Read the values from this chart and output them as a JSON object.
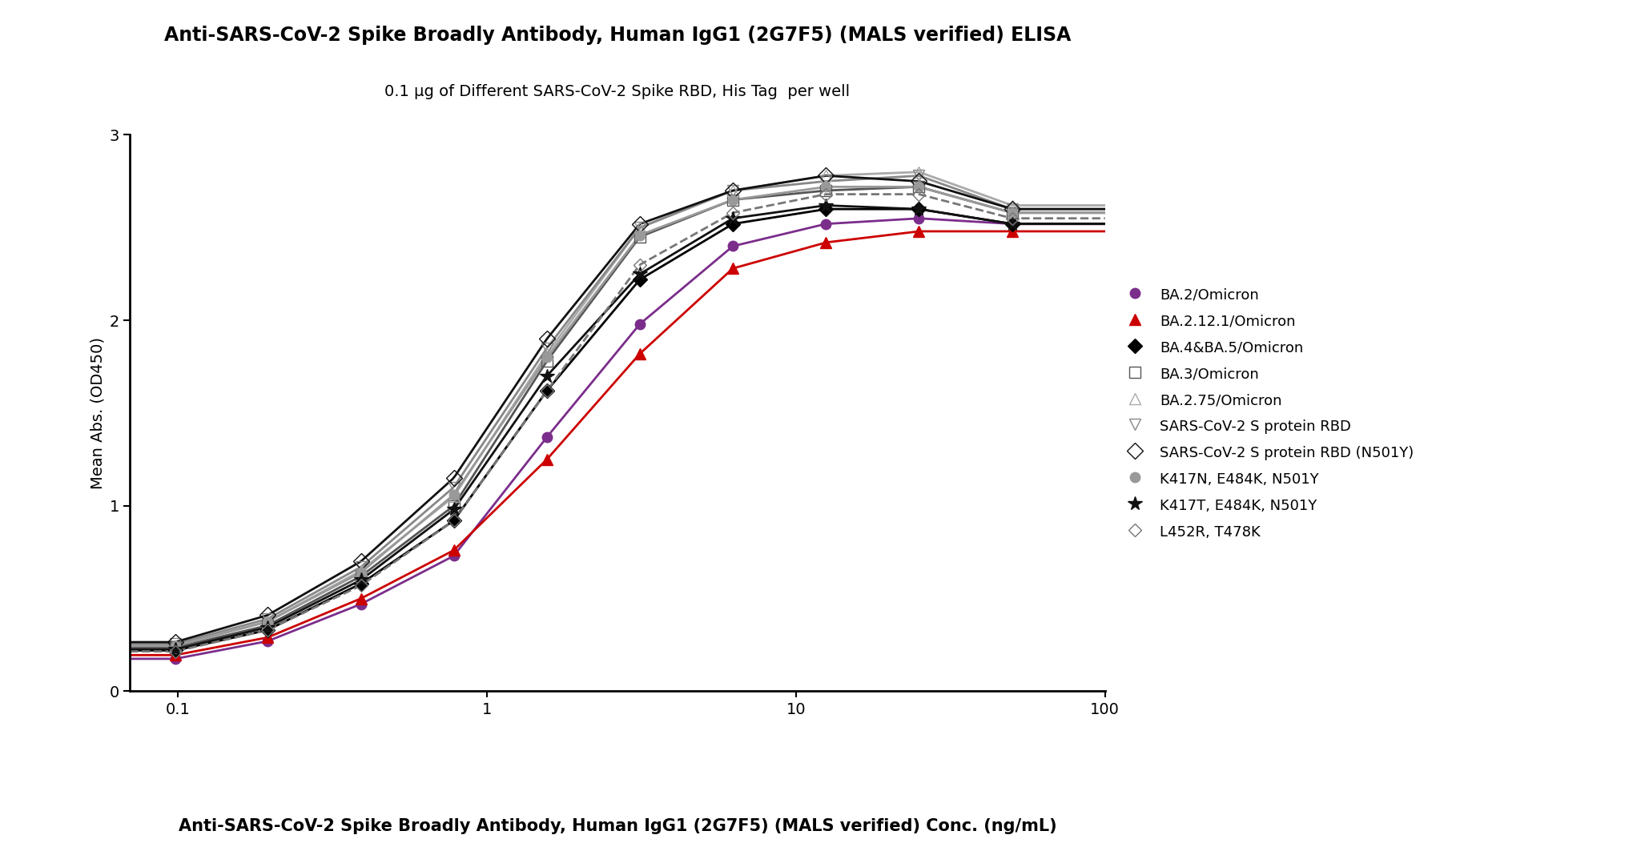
{
  "title": "Anti-SARS-CoV-2 Spike Broadly Antibody, Human IgG1 (2G7F5) (MALS verified) ELISA",
  "subtitle": "0.1 μg of Different SARS-CoV-2 Spike RBD, His Tag  per well",
  "xlabel": "Anti-SARS-CoV-2 Spike Broadly Antibody, Human IgG1 (2G7F5) (MALS verified) Conc. (ng/mL)",
  "ylabel": "Mean Abs. (OD450)",
  "background_color": "#ffffff",
  "series": [
    {
      "label": "BA.2/Omicron",
      "color": "#7b2d8b",
      "marker": "o",
      "markersize": 9,
      "linestyle": "-",
      "linewidth": 2.0,
      "fillstyle": "full",
      "x": [
        0.098,
        0.195,
        0.391,
        0.781,
        1.563,
        3.125,
        6.25,
        12.5,
        25,
        50
      ],
      "y": [
        0.175,
        0.27,
        0.47,
        0.73,
        1.37,
        1.98,
        2.4,
        2.52,
        2.55,
        2.52
      ]
    },
    {
      "label": "BA.2.12.1/Omicron",
      "color": "#cc0000",
      "marker": "^",
      "markersize": 10,
      "linestyle": "-",
      "linewidth": 2.0,
      "fillstyle": "full",
      "x": [
        0.098,
        0.195,
        0.391,
        0.781,
        1.563,
        3.125,
        6.25,
        12.5,
        25,
        50
      ],
      "y": [
        0.195,
        0.29,
        0.5,
        0.76,
        1.25,
        1.82,
        2.28,
        2.42,
        2.48,
        2.48
      ]
    },
    {
      "label": "BA.4&BA.5/Omicron",
      "color": "#000000",
      "marker": "D",
      "markersize": 9,
      "linestyle": "-",
      "linewidth": 2.0,
      "fillstyle": "full",
      "x": [
        0.098,
        0.195,
        0.391,
        0.781,
        1.563,
        3.125,
        6.25,
        12.5,
        25,
        50
      ],
      "y": [
        0.22,
        0.33,
        0.58,
        0.92,
        1.62,
        2.22,
        2.52,
        2.6,
        2.6,
        2.52
      ]
    },
    {
      "label": "BA.3/Omicron",
      "color": "#555555",
      "marker": "s",
      "markersize": 10,
      "linestyle": "-",
      "linewidth": 2.0,
      "fillstyle": "none",
      "x": [
        0.098,
        0.195,
        0.391,
        0.781,
        1.563,
        3.125,
        6.25,
        12.5,
        25,
        50
      ],
      "y": [
        0.235,
        0.355,
        0.62,
        1.0,
        1.78,
        2.45,
        2.65,
        2.7,
        2.72,
        2.58
      ]
    },
    {
      "label": "BA.2.75/Omicron",
      "color": "#aaaaaa",
      "marker": "^",
      "markersize": 10,
      "linestyle": "-",
      "linewidth": 2.0,
      "fillstyle": "none",
      "x": [
        0.098,
        0.195,
        0.391,
        0.781,
        1.563,
        3.125,
        6.25,
        12.5,
        25,
        50
      ],
      "y": [
        0.245,
        0.375,
        0.65,
        1.05,
        1.82,
        2.5,
        2.7,
        2.78,
        2.8,
        2.62
      ]
    },
    {
      "label": "SARS-CoV-2 S protein RBD",
      "color": "#888888",
      "marker": "v",
      "markersize": 10,
      "linestyle": "-",
      "linewidth": 2.0,
      "fillstyle": "none",
      "x": [
        0.098,
        0.195,
        0.391,
        0.781,
        1.563,
        3.125,
        6.25,
        12.5,
        25,
        50
      ],
      "y": [
        0.255,
        0.39,
        0.67,
        1.1,
        1.85,
        2.5,
        2.7,
        2.75,
        2.78,
        2.6
      ]
    },
    {
      "label": "SARS-CoV-2 S protein RBD (N501Y)",
      "color": "#111111",
      "marker": "D",
      "markersize": 10,
      "linestyle": "-",
      "linewidth": 2.0,
      "fillstyle": "none",
      "x": [
        0.098,
        0.195,
        0.391,
        0.781,
        1.563,
        3.125,
        6.25,
        12.5,
        25,
        50
      ],
      "y": [
        0.265,
        0.41,
        0.7,
        1.15,
        1.9,
        2.52,
        2.7,
        2.78,
        2.75,
        2.6
      ]
    },
    {
      "label": "K417N, E484K, N501Y",
      "color": "#999999",
      "marker": "o",
      "markersize": 9,
      "linestyle": "-",
      "linewidth": 2.0,
      "fillstyle": "full",
      "x": [
        0.098,
        0.195,
        0.391,
        0.781,
        1.563,
        3.125,
        6.25,
        12.5,
        25,
        50
      ],
      "y": [
        0.245,
        0.375,
        0.64,
        1.06,
        1.8,
        2.46,
        2.65,
        2.72,
        2.72,
        2.58
      ]
    },
    {
      "label": "K417T, E484K, N501Y",
      "color": "#111111",
      "marker": "*",
      "markersize": 13,
      "linestyle": "-",
      "linewidth": 2.0,
      "fillstyle": "full",
      "x": [
        0.098,
        0.195,
        0.391,
        0.781,
        1.563,
        3.125,
        6.25,
        12.5,
        25,
        50
      ],
      "y": [
        0.225,
        0.345,
        0.6,
        0.98,
        1.7,
        2.25,
        2.55,
        2.62,
        2.6,
        2.52
      ]
    },
    {
      "label": "L452R, T478K",
      "color": "#777777",
      "marker": "D",
      "markersize": 8,
      "linestyle": "--",
      "linewidth": 2.0,
      "fillstyle": "none",
      "x": [
        0.098,
        0.195,
        0.391,
        0.781,
        1.563,
        3.125,
        6.25,
        12.5,
        25,
        50
      ],
      "y": [
        0.215,
        0.33,
        0.57,
        0.92,
        1.62,
        2.3,
        2.58,
        2.68,
        2.68,
        2.55
      ]
    }
  ],
  "xlim": [
    0.07,
    100
  ],
  "ylim": [
    0,
    3.0
  ],
  "yticks": [
    0,
    1,
    2,
    3
  ],
  "xticks": [
    0.1,
    1,
    10,
    100
  ],
  "title_fontsize": 17,
  "subtitle_fontsize": 14,
  "xlabel_fontsize": 15,
  "ylabel_fontsize": 14,
  "tick_fontsize": 14,
  "legend_fontsize": 13
}
